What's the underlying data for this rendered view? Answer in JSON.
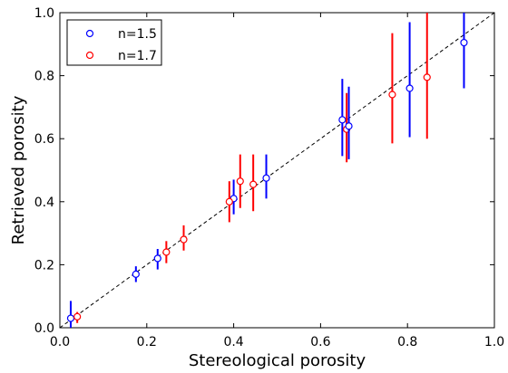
{
  "chart_data": {
    "type": "scatter",
    "xlabel": "Stereological porosity",
    "ylabel": "Retrieved porosity",
    "xlim": [
      0.0,
      1.0
    ],
    "ylim": [
      0.0,
      1.0
    ],
    "xticks": [
      "0.0",
      "0.2",
      "0.4",
      "0.6",
      "0.8",
      "1.0"
    ],
    "yticks": [
      "0.0",
      "0.2",
      "0.4",
      "0.6",
      "0.8",
      "1.0"
    ],
    "grid": false,
    "legend_position": "top-left",
    "reference_line": {
      "style": "dashed",
      "x": [
        0.0,
        1.0
      ],
      "y": [
        0.0,
        1.0
      ],
      "color": "#000000"
    },
    "series": [
      {
        "name": "n=1.5",
        "color": "#0000ff",
        "marker": "open-circle",
        "points": [
          {
            "x": 0.025,
            "y": 0.03,
            "ylo": -0.01,
            "yhi": 0.085
          },
          {
            "x": 0.175,
            "y": 0.17,
            "ylo": 0.145,
            "yhi": 0.195
          },
          {
            "x": 0.225,
            "y": 0.22,
            "ylo": 0.185,
            "yhi": 0.25
          },
          {
            "x": 0.4,
            "y": 0.41,
            "ylo": 0.36,
            "yhi": 0.47
          },
          {
            "x": 0.475,
            "y": 0.475,
            "ylo": 0.41,
            "yhi": 0.55
          },
          {
            "x": 0.65,
            "y": 0.66,
            "ylo": 0.545,
            "yhi": 0.79
          },
          {
            "x": 0.805,
            "y": 0.76,
            "ylo": 0.605,
            "yhi": 0.97
          },
          {
            "x": 0.93,
            "y": 0.905,
            "ylo": 0.76,
            "yhi": 1.0
          }
        ]
      },
      {
        "name": "n=1.7",
        "color": "#ff0000",
        "marker": "open-circle",
        "points": [
          {
            "x": 0.04,
            "y": 0.035,
            "ylo": 0.015,
            "yhi": 0.05
          },
          {
            "x": 0.245,
            "y": 0.24,
            "ylo": 0.205,
            "yhi": 0.275
          },
          {
            "x": 0.285,
            "y": 0.28,
            "ylo": 0.245,
            "yhi": 0.325
          },
          {
            "x": 0.39,
            "y": 0.4,
            "ylo": 0.335,
            "yhi": 0.465
          },
          {
            "x": 0.415,
            "y": 0.465,
            "ylo": 0.38,
            "yhi": 0.55
          },
          {
            "x": 0.445,
            "y": 0.455,
            "ylo": 0.37,
            "yhi": 0.55
          },
          {
            "x": 0.66,
            "y": 0.63,
            "ylo": 0.525,
            "yhi": 0.745
          },
          {
            "x": 0.765,
            "y": 0.74,
            "ylo": 0.585,
            "yhi": 0.935
          },
          {
            "x": 0.845,
            "y": 0.795,
            "ylo": 0.6,
            "yhi": 1.0
          }
        ]
      },
      {
        "name": "n=1.5",
        "color": "#0000ff",
        "marker": "open-circle",
        "in_legend": false,
        "points": [
          {
            "x": 0.665,
            "y": 0.64,
            "ylo": 0.535,
            "yhi": 0.765
          }
        ]
      }
    ]
  }
}
